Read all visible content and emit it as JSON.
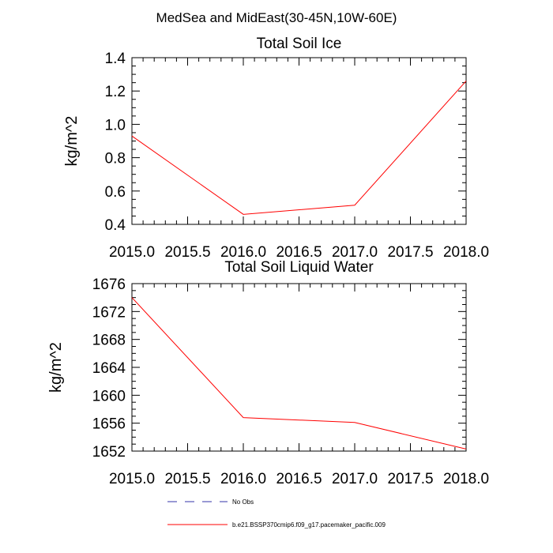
{
  "page_title": "MedSea and MidEast(30-45N,10W-60E)",
  "chart_data": [
    {
      "type": "line",
      "title": "Total Soil Ice",
      "xlabel": "",
      "ylabel": "kg/m^2",
      "x": [
        2015.0,
        2016.0,
        2017.0,
        2018.0
      ],
      "xlim": [
        2015.0,
        2018.0
      ],
      "ylim": [
        0.4,
        1.4
      ],
      "xticks": [
        "2015.0",
        "2015.5",
        "2016.0",
        "2016.5",
        "2017.0",
        "2017.5",
        "2018.0"
      ],
      "yticks": [
        "0.4",
        "0.6",
        "0.8",
        "1.0",
        "1.2",
        "1.4"
      ],
      "series": [
        {
          "name": "b.e21.BSSP370cmip6.f09_g17.pacemaker_pacific.009",
          "color": "#ff0000",
          "values": [
            0.93,
            0.46,
            0.515,
            1.26
          ]
        }
      ],
      "grid": false
    },
    {
      "type": "line",
      "title": "Total Soil Liquid Water",
      "xlabel": "",
      "ylabel": "kg/m^2",
      "x": [
        2015.0,
        2016.0,
        2017.0,
        2018.0
      ],
      "xlim": [
        2015.0,
        2018.0
      ],
      "ylim": [
        1652,
        1676
      ],
      "xticks": [
        "2015.0",
        "2015.5",
        "2016.0",
        "2016.5",
        "2017.0",
        "2017.5",
        "2018.0"
      ],
      "yticks": [
        "1652",
        "1656",
        "1660",
        "1664",
        "1668",
        "1672",
        "1676"
      ],
      "series": [
        {
          "name": "b.e21.BSSP370cmip6.f09_g17.pacemaker_pacific.009",
          "color": "#ff0000",
          "values": [
            1674.0,
            1656.8,
            1656.1,
            1652.3
          ]
        }
      ],
      "grid": false
    }
  ],
  "legend": {
    "items": [
      {
        "label": "No Obs",
        "color": "#3333aa",
        "style": "dashed"
      },
      {
        "label": "b.e21.BSSP370cmip6.f09_g17.pacemaker_pacific.009",
        "color": "#ff0000",
        "style": "solid"
      }
    ]
  }
}
